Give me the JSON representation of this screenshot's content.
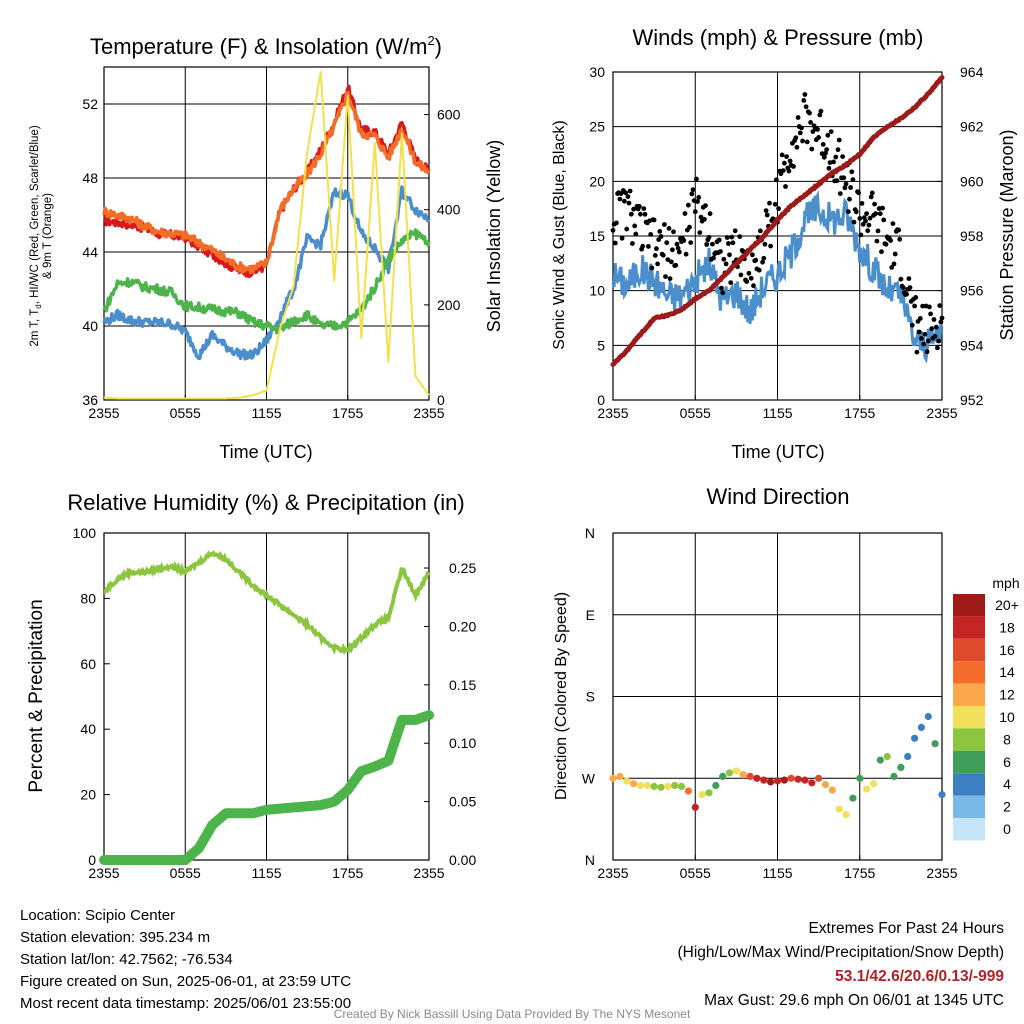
{
  "chart_data": [
    {
      "type": "line",
      "title": "Temperature (F) & Insolation (W/m²)",
      "xlabel": "Time (UTC)",
      "ylabel_lines": [
        "2m T, T",
        "d",
        ", HI/WC (Red, Green, Scarlet/Blue)",
        "& 9m T (Orange)"
      ],
      "y2label": "Solar Insolation (Yellow)",
      "x_ticks": [
        "2355",
        "0555",
        "1155",
        "1755",
        "2355"
      ],
      "ylim": [
        36,
        54
      ],
      "y_ticks": [
        36,
        40,
        44,
        48,
        52
      ],
      "y2lim": [
        0,
        700
      ],
      "y2_ticks": [
        0,
        200,
        400,
        600
      ],
      "grid": true,
      "x_hours": [
        0,
        1,
        2,
        3,
        4,
        5,
        6,
        7,
        8,
        9,
        10,
        11,
        12,
        13,
        14,
        15,
        16,
        17,
        18,
        19,
        20,
        21,
        22,
        23,
        24
      ],
      "series": [
        {
          "color": "#d7191c",
          "axis": "left",
          "values": [
            45.7,
            45.6,
            45.5,
            45.3,
            45.0,
            44.9,
            44.8,
            44.3,
            43.9,
            43.4,
            43.0,
            42.9,
            43.3,
            46.2,
            47.4,
            48.3,
            49.5,
            51.0,
            52.9,
            50.6,
            50.5,
            49.3,
            51.0,
            49.0,
            48.4
          ]
        },
        {
          "color": "#f46d28",
          "axis": "left",
          "values": [
            46.2,
            46.0,
            45.8,
            45.4,
            45.1,
            45.0,
            44.9,
            44.5,
            44.1,
            43.6,
            43.2,
            43.1,
            43.4,
            46.3,
            47.4,
            48.2,
            49.3,
            50.8,
            52.6,
            50.4,
            50.3,
            49.1,
            50.7,
            48.9,
            48.3
          ]
        },
        {
          "color": "#4a8fcb",
          "axis": "left",
          "values": [
            40.2,
            40.6,
            40.3,
            40.2,
            40.2,
            40.1,
            39.7,
            38.4,
            39.5,
            38.9,
            38.5,
            38.4,
            39.2,
            40.5,
            42.0,
            44.7,
            44.4,
            47.2,
            47.1,
            45.0,
            44.2,
            43.1,
            47.3,
            46.3,
            45.8
          ]
        },
        {
          "color": "#4cb44a",
          "axis": "left",
          "values": [
            40.8,
            42.3,
            42.4,
            42.1,
            42.0,
            41.8,
            41.1,
            41.0,
            40.9,
            40.8,
            40.7,
            40.2,
            40.0,
            39.8,
            40.3,
            40.6,
            40.0,
            40.0,
            40.2,
            40.9,
            42.1,
            43.6,
            44.6,
            45.0,
            44.6
          ]
        },
        {
          "color": "#f5e04b",
          "axis": "right",
          "values": [
            5,
            3,
            3,
            3,
            3,
            3,
            3,
            3,
            3,
            3,
            5,
            10,
            20,
            150,
            240,
            520,
            690,
            250,
            640,
            130,
            540,
            80,
            560,
            50,
            10
          ]
        }
      ]
    },
    {
      "type": "line",
      "title": "Winds (mph) & Pressure (mb)",
      "xlabel": "Time (UTC)",
      "ylabel": "Sonic Wind & Gust (Blue, Black)",
      "y2label": "Station Pressure (Maroon)",
      "x_ticks": [
        "2355",
        "0555",
        "1155",
        "1755",
        "2355"
      ],
      "ylim": [
        0,
        30
      ],
      "y_ticks": [
        0,
        5,
        10,
        15,
        20,
        25,
        30
      ],
      "y2lim": [
        952,
        964
      ],
      "y2_ticks": [
        952,
        954,
        956,
        958,
        960,
        962,
        964
      ],
      "grid": true,
      "x_hours": [
        0,
        1,
        2,
        3,
        4,
        5,
        6,
        7,
        8,
        9,
        10,
        11,
        12,
        13,
        14,
        15,
        16,
        17,
        18,
        19,
        20,
        21,
        22,
        23,
        24
      ],
      "series": [
        {
          "name": "Sonic Wind",
          "color": "#4a8fcb",
          "axis": "left",
          "values": [
            11.5,
            10.5,
            12.0,
            11.0,
            9.5,
            9.5,
            11.0,
            12.5,
            9.0,
            10.0,
            8.0,
            10.5,
            11.5,
            13.5,
            16.5,
            17.5,
            16.5,
            17.0,
            14.0,
            12.0,
            10.0,
            9.5,
            5.5,
            5.0,
            6.5
          ]
        },
        {
          "name": "Gust",
          "color": "#000000",
          "axis": "left",
          "values": [
            16.5,
            17.5,
            15.5,
            14.0,
            13.5,
            14.0,
            18.0,
            16.0,
            12.0,
            13.5,
            12.0,
            14.5,
            18.5,
            23.5,
            25.5,
            24.5,
            23.0,
            20.0,
            17.0,
            16.5,
            14.5,
            13.0,
            7.0,
            6.0,
            7.5
          ]
        },
        {
          "name": "Pressure",
          "color": "#9e1a1a",
          "axis": "right",
          "values": [
            953.3,
            953.8,
            954.4,
            955.0,
            955.1,
            955.3,
            955.7,
            956.0,
            956.5,
            957.0,
            957.5,
            958.0,
            958.6,
            959.1,
            959.5,
            959.9,
            960.3,
            960.6,
            961.0,
            961.6,
            962.0,
            962.3,
            962.7,
            963.2,
            963.8
          ]
        }
      ]
    },
    {
      "type": "line",
      "title": "Relative Humidity (%) & Precipitation (in)",
      "ylabel": "Percent & Precipitation",
      "x_ticks": [
        "2355",
        "0555",
        "1155",
        "1755",
        "2355"
      ],
      "ylim": [
        0,
        100
      ],
      "y_ticks": [
        0,
        20,
        40,
        60,
        80,
        100
      ],
      "y2lim": [
        0,
        0.28
      ],
      "y2_ticks": [
        "0.00",
        "0.05",
        "0.10",
        "0.15",
        "0.20",
        "0.25"
      ],
      "grid": true,
      "x_hours": [
        0,
        1,
        2,
        3,
        4,
        5,
        6,
        7,
        8,
        9,
        10,
        11,
        12,
        13,
        14,
        15,
        16,
        17,
        18,
        19,
        20,
        21,
        22,
        23,
        24
      ],
      "series": [
        {
          "name": "Relative Humidity",
          "color": "#8cc63f",
          "axis": "left",
          "values": [
            82,
            86,
            88,
            88,
            89,
            90,
            88,
            91,
            94,
            92,
            88,
            84,
            81,
            78,
            75,
            72,
            68,
            65,
            64,
            68,
            72,
            74,
            89,
            81,
            88
          ]
        },
        {
          "name": "Precipitation",
          "color": "#4cb44a",
          "axis": "right",
          "values": [
            0.0,
            0.0,
            0.0,
            0.0,
            0.0,
            0.0,
            0.0,
            0.01,
            0.03,
            0.04,
            0.04,
            0.04,
            0.043,
            0.044,
            0.045,
            0.046,
            0.047,
            0.05,
            0.06,
            0.076,
            0.08,
            0.085,
            0.12,
            0.12,
            0.124
          ]
        }
      ]
    },
    {
      "type": "scatter",
      "title": "Wind Direction",
      "ylabel": "Direction (Colored By Speed)",
      "x_ticks": [
        "2355",
        "0555",
        "1155",
        "1755",
        "2355"
      ],
      "y_ticks": [
        "N",
        "E",
        "S",
        "W",
        "N"
      ],
      "y_ticks_deg": [
        0,
        90,
        180,
        270,
        360
      ],
      "grid": true,
      "colorbar_title": "mph",
      "colorbar_labels": [
        "20+",
        "18",
        "16",
        "14",
        "12",
        "10",
        "8",
        "6",
        "4",
        "2",
        "0"
      ],
      "colorbar_colors": [
        "#a11a1a",
        "#c62424",
        "#e04a2c",
        "#f46d2c",
        "#fca84a",
        "#f1e05a",
        "#8cc63f",
        "#3e9e5a",
        "#3c7fc0",
        "#7ab8e6",
        "#c5e4f7"
      ],
      "x_hours": [
        0,
        0.5,
        1,
        1.5,
        2,
        2.5,
        3,
        3.5,
        4,
        4.5,
        5,
        5.5,
        6,
        6.5,
        7,
        7.5,
        8,
        8.5,
        9,
        9.5,
        10,
        10.5,
        11,
        11.5,
        12,
        12.5,
        13,
        13.5,
        14,
        14.5,
        15,
        15.5,
        16,
        16.5,
        17,
        17.5,
        18,
        18.5,
        19,
        19.5,
        20,
        20.5,
        21,
        21.5,
        22,
        22.5,
        23,
        23.5,
        24
      ],
      "direction_deg": [
        270,
        268,
        273,
        276,
        278,
        278,
        279,
        280,
        279,
        278,
        279,
        284,
        302,
        288,
        286,
        278,
        268,
        264,
        262,
        266,
        268,
        270,
        272,
        274,
        273,
        272,
        270,
        271,
        272,
        275,
        270,
        277,
        283,
        304,
        310,
        292,
        270,
        282,
        276,
        250,
        246,
        268,
        258,
        246,
        226,
        214,
        202,
        232,
        288
      ],
      "speed_mph": [
        12,
        11,
        9,
        12,
        10,
        10,
        8,
        8,
        10,
        8,
        7,
        14,
        18,
        10,
        8,
        6,
        6,
        8,
        10,
        11,
        16,
        17,
        18,
        19,
        18,
        20,
        16,
        18,
        17,
        18,
        16,
        12,
        12,
        9,
        10,
        6,
        6,
        9,
        10,
        6,
        8,
        5,
        5,
        4,
        3,
        3,
        4,
        6,
        4
      ]
    }
  ],
  "footer": {
    "location": "Location: Scipio Center",
    "elevation": "Station elevation: 395.234 m",
    "latlon": "Station lat/lon: 42.7562; -76.534",
    "created": "Figure created on Sun, 2025-06-01, at 23:59 UTC",
    "recent": "Most recent data timestamp: 2025/06/01 23:55:00",
    "extremes_title": "Extremes For Past 24 Hours",
    "extremes_legend": "(High/Low/Max Wind/Precipitation/Snow Depth)",
    "extremes_values": "53.1/42.6/20.6/0.13/-999",
    "max_gust": "Max Gust: 29.6 mph On 06/01 at 1345 UTC",
    "credit": "Created By Nick Bassill Using Data Provided By The NYS Mesonet"
  }
}
